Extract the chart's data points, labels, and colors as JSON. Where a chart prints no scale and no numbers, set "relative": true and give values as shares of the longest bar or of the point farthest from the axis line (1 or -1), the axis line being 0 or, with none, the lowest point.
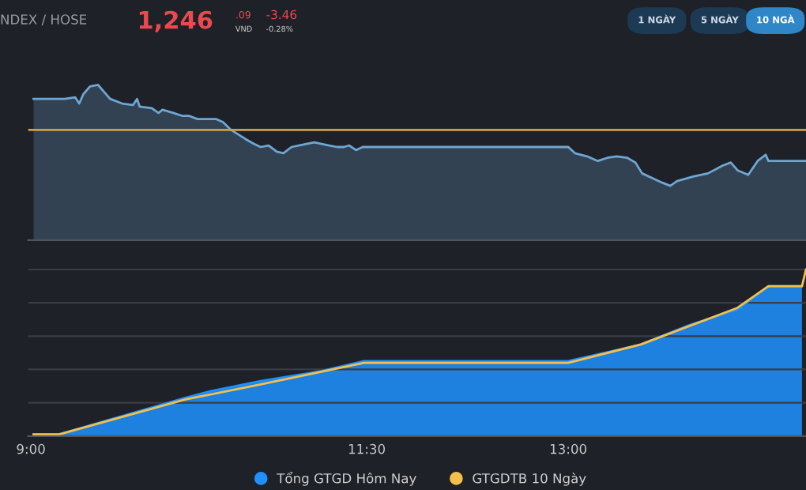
{
  "chart_data": [
    {
      "type": "area",
      "relative": true,
      "tick_labels": false,
      "grid": false,
      "legend": false,
      "annotations": [
        "NDEX / HOSE",
        "1,246",
        ".09",
        "VNĐ",
        "-3.46",
        "-0.28%",
        "1 NGÀY",
        "5 NGÀY",
        "10 NGÀ"
      ],
      "xlim": [
        8.98,
        14.77
      ],
      "ref_lines": [
        {
          "axis": "y",
          "value": 0.71,
          "color": "#c8a04a"
        }
      ],
      "series": [
        {
          "color": "#6ea7d3",
          "x": [
            9.02,
            9.25,
            9.33,
            9.36,
            9.39,
            9.44,
            9.5,
            9.53,
            9.59,
            9.68,
            9.76,
            9.79,
            9.81,
            9.9,
            9.95,
            9.98,
            10.06,
            10.13,
            10.18,
            10.24,
            10.29,
            10.38,
            10.43,
            10.49,
            10.6,
            10.66,
            10.71,
            10.77,
            10.83,
            10.88,
            10.94,
            11.05,
            11.11,
            11.22,
            11.28,
            11.33,
            11.37,
            11.42,
            11.47,
            11.5,
            13.0,
            13.05,
            13.14,
            13.22,
            13.29,
            13.36,
            13.44,
            13.5,
            13.55,
            13.65,
            13.7,
            13.76,
            13.81,
            13.93,
            14.04,
            14.15,
            14.21,
            14.26,
            14.34,
            14.41,
            14.47,
            14.49,
            14.77
          ],
          "values": [
            0.91,
            0.91,
            0.92,
            0.88,
            0.94,
            0.99,
            1,
            0.97,
            0.91,
            0.88,
            0.87,
            0.91,
            0.86,
            0.85,
            0.82,
            0.84,
            0.82,
            0.8,
            0.8,
            0.78,
            0.78,
            0.78,
            0.76,
            0.71,
            0.65,
            0.62,
            0.6,
            0.61,
            0.57,
            0.56,
            0.6,
            0.62,
            0.63,
            0.61,
            0.6,
            0.6,
            0.61,
            0.58,
            0.6,
            0.6,
            0.6,
            0.56,
            0.54,
            0.51,
            0.53,
            0.54,
            0.53,
            0.5,
            0.43,
            0.39,
            0.37,
            0.35,
            0.38,
            0.41,
            0.43,
            0.48,
            0.5,
            0.45,
            0.42,
            0.51,
            0.55,
            0.51,
            0.51
          ]
        }
      ]
    },
    {
      "type": "area",
      "relative": true,
      "tick_labels": "x",
      "grid": "y",
      "legend": "bottom",
      "xlim": [
        8.98,
        14.77
      ],
      "xticks": [
        {
          "value": 9,
          "label": "9:00"
        },
        {
          "value": 11.5,
          "label": "11:30"
        },
        {
          "value": 13,
          "label": "13:00"
        }
      ],
      "series": [
        {
          "name": "Tổng GTGD Hôm Nay",
          "type": "area",
          "color": "#1e90ff",
          "x": [
            9.02,
            9.21,
            9.59,
            10.15,
            10.34,
            10.71,
            11.16,
            11.48,
            13.0,
            13.54,
            13.88,
            14.26,
            14.49,
            14.74
          ],
          "values": [
            0.01,
            0.01,
            0.1,
            0.23,
            0.27,
            0.33,
            0.39,
            0.45,
            0.45,
            0.55,
            0.66,
            0.76,
            0.9,
            0.9
          ]
        },
        {
          "name": "GTGDTB 10 Ngày",
          "type": "line",
          "color": "#f5c04a",
          "x": [
            9.02,
            9.21,
            10.15,
            10.71,
            11.48,
            13.0,
            13.54,
            14.26,
            14.49,
            14.74,
            14.77
          ],
          "values": [
            0.01,
            0.01,
            0.22,
            0.31,
            0.44,
            0.44,
            0.55,
            0.77,
            0.9,
            0.9,
            1.0
          ]
        }
      ]
    }
  ]
}
